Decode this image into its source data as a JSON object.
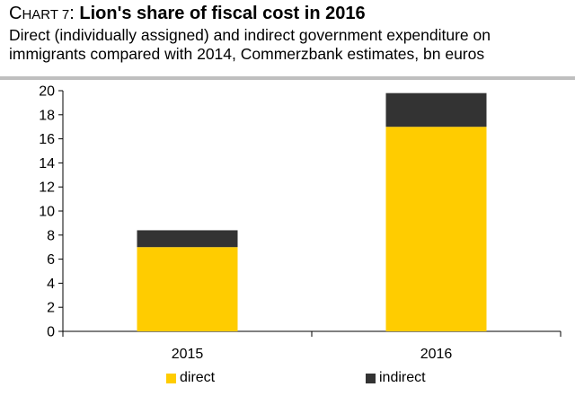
{
  "header": {
    "chart_number_first": "C",
    "chart_number_rest": "HART 7",
    "title_sep": ": ",
    "title": "Lion's share of fiscal cost in 2016",
    "subtitle_line1": "Direct (individually assigned) and indirect government expenditure on",
    "subtitle_line2": "immigrants compared with 2014, Commerzbank estimates, bn euros"
  },
  "colors": {
    "direct": "#FFCC00",
    "indirect": "#333333",
    "rule": "#BFBFBF"
  },
  "chart_data": {
    "type": "bar",
    "stacked": true,
    "title": "Lion's share of fiscal cost in 2016",
    "subtitle": "Direct (individually assigned) and indirect government expenditure on immigrants compared with 2014, Commerzbank estimates, bn euros",
    "categories": [
      "2015",
      "2016"
    ],
    "series": [
      {
        "name": "direct",
        "values": [
          7.0,
          17.0
        ]
      },
      {
        "name": "indirect",
        "values": [
          1.4,
          2.8
        ]
      }
    ],
    "ylim": [
      0,
      20
    ],
    "yticks": [
      "0",
      "2",
      "4",
      "6",
      "8",
      "10",
      "12",
      "14",
      "16",
      "18",
      "20"
    ],
    "xlabel": "",
    "ylabel": "",
    "grid": false,
    "legend_position": "bottom"
  }
}
